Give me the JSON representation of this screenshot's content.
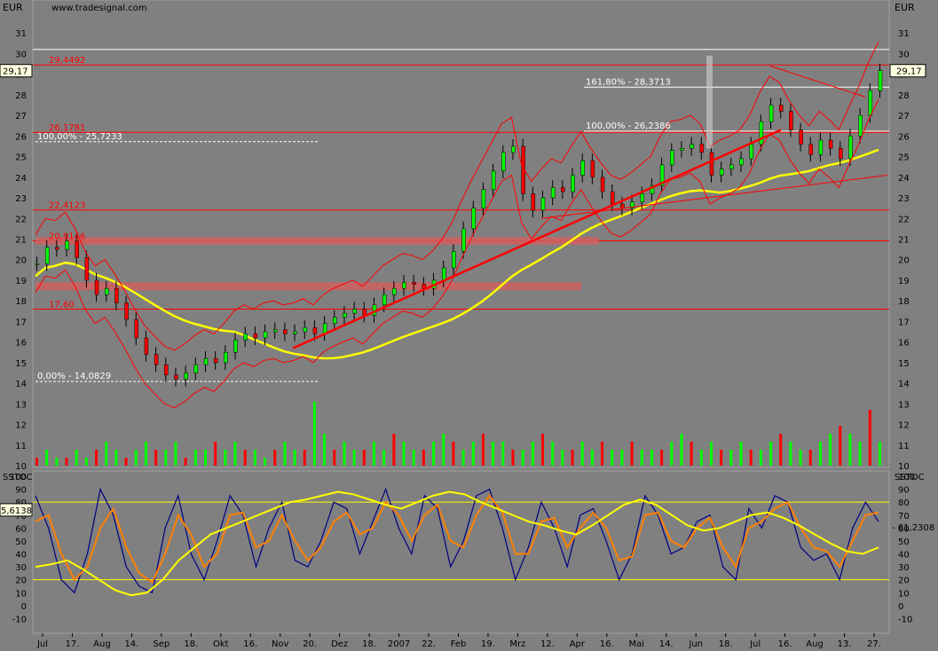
{
  "header": {
    "currency_left": "EUR",
    "currency_right": "EUR",
    "watermark": "www.tradesignal.com",
    "last_price": "29,17"
  },
  "colors": {
    "background": "#808080",
    "up_candle": "#00ff00",
    "down_candle": "#ff0000",
    "bollinger": "#ff0000",
    "ma_long": "#ffff00",
    "stoch_fast": "#000080",
    "stoch_slow": "#ff8000",
    "stoch_long": "#ffff00",
    "fib_line": "#ffffff"
  },
  "chart_data": [
    {
      "type": "line",
      "panel": "price",
      "ylim": [
        10,
        32
      ],
      "yticks": [
        10,
        11,
        12,
        13,
        14,
        15,
        16,
        17,
        18,
        19,
        20,
        21,
        22,
        23,
        24,
        25,
        26,
        27,
        28,
        29,
        30,
        31
      ],
      "xticks": [
        "Jul",
        "17.",
        "Aug",
        "14.",
        "Sep",
        "18.",
        "Okt",
        "16.",
        "Nov",
        "20.",
        "Dez",
        "18.",
        "2007",
        "22.",
        "Feb",
        "19.",
        "Mrz",
        "12.",
        "Apr",
        "16.",
        "Mai",
        "14.",
        "Jun",
        "18.",
        "Jul",
        "16.",
        "Aug",
        "13.",
        "27."
      ],
      "series": [
        {
          "values": [
            19.8,
            20.6,
            20.5,
            20.9,
            20.1,
            19.0,
            18.3,
            18.6,
            17.9,
            17.1,
            16.2,
            15.4,
            14.9,
            14.4,
            14.2,
            14.5,
            14.9,
            15.2,
            15.0,
            15.5,
            16.1,
            16.4,
            16.2,
            16.5,
            16.6,
            16.4,
            16.5,
            16.7,
            16.4,
            16.9,
            17.2,
            17.4,
            17.6,
            17.3,
            17.8,
            18.3,
            18.6,
            18.9,
            18.8,
            18.6,
            19.0,
            19.6,
            20.4,
            21.5,
            22.5,
            23.4,
            24.3,
            25.2,
            25.5,
            23.2,
            22.4,
            23.0,
            23.5,
            23.3,
            24.1,
            24.8,
            24.0,
            23.3,
            22.7,
            22.5,
            22.8,
            23.2,
            23.6,
            24.6,
            25.3,
            25.4,
            25.6,
            25.2,
            24.1,
            24.4,
            24.6,
            24.9,
            25.6,
            26.7,
            27.5,
            27.2,
            26.3,
            25.6,
            25.1,
            25.8,
            25.4,
            24.9,
            26.0,
            27.0,
            28.2,
            29.17
          ]
        }
      ],
      "lines": [
        {
          "label": "29,4492",
          "value": 29.4492
        },
        {
          "label": "26,1781",
          "value": 26.1781
        },
        {
          "label": "22,4123",
          "value": 22.4123
        },
        {
          "label": "20,9146",
          "value": 20.9146
        },
        {
          "label": "17,60",
          "value": 17.6
        }
      ],
      "fib_labels": [
        {
          "label": "161,80% - 28,3713",
          "value": 28.3713
        },
        {
          "label": "100,00% - 26,2386",
          "value": 26.2386
        },
        {
          "label": "100,00% - 25,7233",
          "value": 25.7233
        },
        {
          "label": "0,00% - 14,0829",
          "value": 14.0829
        }
      ],
      "zones": [
        {
          "from": 20.9,
          "to": 21.1
        },
        {
          "from": 18.6,
          "to": 18.9
        }
      ]
    },
    {
      "type": "line",
      "panel": "stochastic",
      "title": "SSTOC",
      "ylim": [
        -20,
        100
      ],
      "yticks": [
        -10,
        0,
        10,
        20,
        30,
        40,
        50,
        60,
        70,
        80,
        90,
        100
      ],
      "levels": [
        20,
        80
      ],
      "current_left": "5,6138",
      "current_right": "- 61,2308",
      "series": [
        {
          "values": [
            85,
            60,
            20,
            10,
            40,
            90,
            70,
            30,
            15,
            10,
            60,
            85,
            40,
            20,
            50,
            85,
            70,
            30,
            60,
            80,
            35,
            30,
            50,
            80,
            75,
            40,
            65,
            90,
            60,
            40,
            85,
            75,
            30,
            50,
            85,
            90,
            60,
            20,
            45,
            80,
            60,
            30,
            70,
            75,
            50,
            20,
            40,
            85,
            70,
            40,
            45,
            65,
            70,
            30,
            20,
            75,
            60,
            85,
            80,
            45,
            35,
            40,
            20,
            60,
            80,
            65
          ]
        },
        {
          "values": [
            65,
            70,
            40,
            20,
            30,
            60,
            75,
            45,
            25,
            18,
            40,
            70,
            55,
            30,
            40,
            70,
            72,
            45,
            50,
            70,
            50,
            35,
            45,
            65,
            72,
            55,
            60,
            80,
            70,
            50,
            70,
            78,
            50,
            45,
            70,
            85,
            72,
            40,
            40,
            65,
            68,
            45,
            60,
            72,
            60,
            35,
            38,
            70,
            72,
            50,
            45,
            60,
            68,
            45,
            30,
            60,
            65,
            75,
            80,
            60,
            45,
            42,
            30,
            50,
            70,
            72
          ]
        },
        {
          "values": [
            30,
            32,
            35,
            28,
            20,
            12,
            8,
            10,
            20,
            35,
            45,
            55,
            60,
            65,
            70,
            75,
            80,
            82,
            85,
            88,
            86,
            82,
            78,
            75,
            80,
            85,
            88,
            86,
            80,
            75,
            70,
            65,
            62,
            58,
            55,
            62,
            70,
            78,
            82,
            78,
            70,
            62,
            58,
            60,
            65,
            70,
            72,
            68,
            62,
            55,
            48,
            42,
            40,
            45
          ]
        }
      ]
    },
    {
      "type": "bar",
      "panel": "volume",
      "values": [
        1,
        2,
        1,
        1,
        2,
        1,
        2,
        3,
        2,
        1,
        2,
        3,
        2,
        2,
        3,
        1,
        2,
        2,
        3,
        2,
        3,
        2,
        2,
        1,
        2,
        3,
        2,
        2,
        8,
        4,
        2,
        3,
        2,
        2,
        3,
        2,
        4,
        3,
        2,
        2,
        3,
        4,
        3,
        2,
        3,
        4,
        3,
        3,
        2,
        2,
        3,
        4,
        3,
        2,
        2,
        3,
        2,
        3,
        2,
        2,
        3,
        2,
        2,
        2,
        3,
        4,
        3,
        2,
        3,
        2,
        2,
        3,
        2,
        2,
        3,
        4,
        3,
        2,
        2,
        3,
        4,
        5,
        4,
        3,
        7,
        3
      ]
    }
  ]
}
